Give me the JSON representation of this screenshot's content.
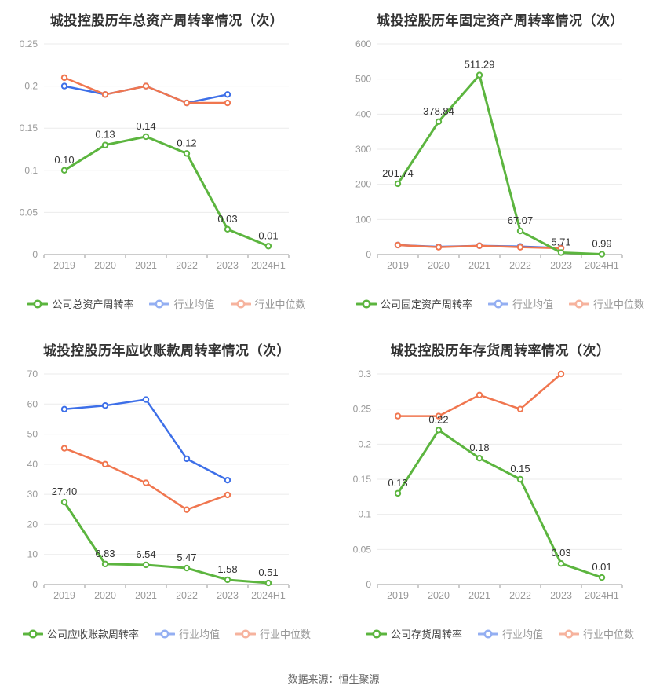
{
  "page": {
    "footer": "数据来源：恒生聚源"
  },
  "colors": {
    "company_green": "#5CB53F",
    "industry_mean_blue": "#3D6FE8",
    "industry_median_orange": "#F0764F",
    "grid_line": "#ebebeb",
    "axis_line": "#999999",
    "tick_label": "#999999",
    "data_label": "#333333",
    "title_text": "#333333"
  },
  "chart_data": [
    {
      "type": "line",
      "title": "城投控股历年总资产周转率情况（次）",
      "categories": [
        "2019",
        "2020",
        "2021",
        "2022",
        "2023",
        "2024H1"
      ],
      "ylim": [
        0,
        0.25
      ],
      "y_ticks": [
        "0",
        "0.05",
        "0.1",
        "0.15",
        "0.2",
        "0.25"
      ],
      "grid": true,
      "legend_position": "bottom",
      "draw_order": [
        1,
        2,
        0
      ],
      "series": [
        {
          "name": "公司总资产周转率",
          "color": "#5CB53F",
          "dimmed": false,
          "width": 3,
          "values": [
            0.1,
            0.13,
            0.14,
            0.12,
            0.03,
            0.01
          ],
          "labels": [
            "0.10",
            "0.13",
            "0.14",
            "0.12",
            "0.03",
            "0.01"
          ]
        },
        {
          "name": "行业均值",
          "color": "#3D6FE8",
          "dimmed": true,
          "width": 2.5,
          "values": [
            0.2,
            0.19,
            0.2,
            0.18,
            0.19,
            null
          ]
        },
        {
          "name": "行业中位数",
          "color": "#F0764F",
          "dimmed": true,
          "width": 2.5,
          "values": [
            0.21,
            0.19,
            0.2,
            0.18,
            0.18,
            null
          ]
        }
      ]
    },
    {
      "type": "line",
      "title": "城投控股历年固定资产周转率情况（次）",
      "categories": [
        "2019",
        "2020",
        "2021",
        "2022",
        "2023",
        "2024H1"
      ],
      "ylim": [
        0,
        600
      ],
      "y_ticks": [
        "0",
        "100",
        "200",
        "300",
        "400",
        "500",
        "600"
      ],
      "grid": true,
      "legend_position": "bottom",
      "draw_order": [
        1,
        2,
        0
      ],
      "series": [
        {
          "name": "公司固定资产周转率",
          "color": "#5CB53F",
          "dimmed": false,
          "width": 3,
          "values": [
            201.74,
            378.84,
            511.29,
            67.07,
            5.71,
            0.99
          ],
          "labels": [
            "201.74",
            "378.84",
            "511.29",
            "67.07",
            "5.71",
            "0.99"
          ]
        },
        {
          "name": "行业均值",
          "color": "#3D6FE8",
          "dimmed": true,
          "width": 2.5,
          "values": [
            27,
            22,
            25,
            23,
            18.5,
            null
          ]
        },
        {
          "name": "行业中位数",
          "color": "#F0764F",
          "dimmed": true,
          "width": 2.5,
          "values": [
            27,
            21,
            25,
            21,
            18,
            null
          ]
        }
      ]
    },
    {
      "type": "line",
      "title": "城投控股历年应收账款周转率情况（次）",
      "categories": [
        "2019",
        "2020",
        "2021",
        "2022",
        "2023",
        "2024H1"
      ],
      "ylim": [
        0,
        70
      ],
      "y_ticks": [
        "0",
        "10",
        "20",
        "30",
        "40",
        "50",
        "60",
        "70"
      ],
      "grid": true,
      "legend_position": "bottom",
      "draw_order": [
        1,
        2,
        0
      ],
      "series": [
        {
          "name": "公司应收账款周转率",
          "color": "#5CB53F",
          "dimmed": false,
          "width": 3,
          "values": [
            27.4,
            6.83,
            6.54,
            5.47,
            1.58,
            0.51
          ],
          "labels": [
            "27.40",
            "6.83",
            "6.54",
            "5.47",
            "1.58",
            "0.51"
          ]
        },
        {
          "name": "行业均值",
          "color": "#3D6FE8",
          "dimmed": true,
          "width": 2.5,
          "values": [
            58.3,
            59.5,
            61.5,
            41.8,
            34.7,
            null
          ]
        },
        {
          "name": "行业中位数",
          "color": "#F0764F",
          "dimmed": true,
          "width": 2.5,
          "values": [
            45.3,
            40.0,
            33.8,
            24.9,
            29.8,
            null
          ]
        }
      ]
    },
    {
      "type": "line",
      "title": "城投控股历年存货周转率情况（次）",
      "categories": [
        "2019",
        "2020",
        "2021",
        "2022",
        "2023",
        "2024H1"
      ],
      "ylim": [
        0,
        0.3
      ],
      "y_ticks": [
        "0",
        "0.05",
        "0.1",
        "0.15",
        "0.2",
        "0.25",
        "0.3"
      ],
      "grid": true,
      "legend_position": "bottom",
      "draw_order": [
        1,
        2,
        0
      ],
      "series": [
        {
          "name": "公司存货周转率",
          "color": "#5CB53F",
          "dimmed": false,
          "width": 3,
          "values": [
            0.13,
            0.22,
            0.18,
            0.15,
            0.03,
            0.01
          ],
          "labels": [
            "0.13",
            "0.22",
            "0.18",
            "0.15",
            "0.03",
            "0.01"
          ]
        },
        {
          "name": "行业均值",
          "color": "#3D6FE8",
          "dimmed": true,
          "width": 2.5,
          "values": [
            null,
            null,
            null,
            null,
            null,
            null
          ]
        },
        {
          "name": "行业中位数",
          "color": "#F0764F",
          "dimmed": true,
          "width": 2.5,
          "values": [
            0.24,
            0.24,
            0.27,
            0.25,
            0.3,
            null
          ]
        }
      ]
    }
  ]
}
